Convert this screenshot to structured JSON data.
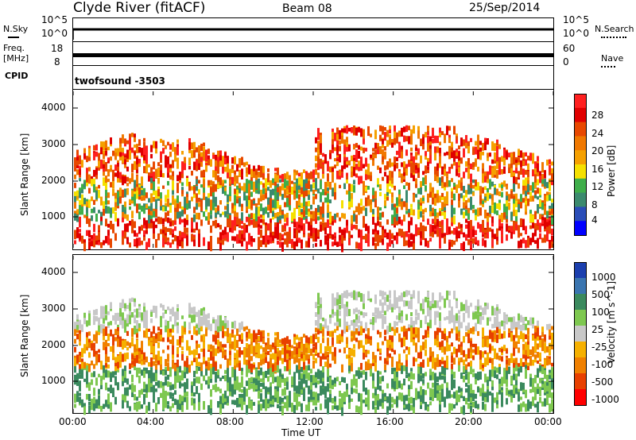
{
  "header": {
    "station": "Clyde River (fitACF)",
    "beam": "Beam 08",
    "date": "25/Sep/2014"
  },
  "nsky_panel": {
    "left_label": "N.Sky",
    "left_ticks": [
      "10^5",
      "10^0"
    ],
    "right_ticks": [
      "10^5",
      "10^0"
    ],
    "right_label": "N.Search"
  },
  "freq_panel": {
    "left_label_1": "Freq.",
    "left_label_2": "[MHz]",
    "left_ticks": [
      "18",
      "8"
    ],
    "right_ticks": [
      "60",
      "0"
    ],
    "right_label": "Nave"
  },
  "cpid": {
    "label": "CPID",
    "value": "twofsound -3503"
  },
  "colorscale_power": {
    "title": "Power [dB]",
    "labels": [
      "28",
      "24",
      "20",
      "16",
      "12",
      "8",
      "4"
    ],
    "colors": [
      "#0000ff",
      "#2a4db8",
      "#3b8a6e",
      "#3fae4a",
      "#f5e000",
      "#f5a000",
      "#f07800",
      "#e84800",
      "#e00000",
      "#ff2020"
    ]
  },
  "colorscale_velocity": {
    "title": "Velocity [m s^-1]",
    "labels": [
      "1000",
      "500",
      "100",
      "25",
      "-25",
      "-100",
      "-500",
      "-1000"
    ],
    "colors": [
      "#1b3fae",
      "#3a75b0",
      "#3b8a5e",
      "#7ec850",
      "#c8c8c8",
      "#f5b000",
      "#f08000",
      "#e84000",
      "#ff0000"
    ]
  },
  "chart_data": [
    {
      "type": "heatmap",
      "title": "Power",
      "ylabel": "Slant Range [km]",
      "xlabel": "Time UT",
      "ylim": [
        180,
        4500
      ],
      "yticks": [
        "4000",
        "3000",
        "2000",
        "1000"
      ],
      "xticks": [
        "00:00",
        "04:00",
        "08:00",
        "12:00",
        "16:00",
        "20:00",
        "00:00"
      ],
      "colorbar_label": "Power [dB]"
    },
    {
      "type": "heatmap",
      "title": "Velocity",
      "ylabel": "Slant Range [km]",
      "xlabel": "Time UT",
      "ylim": [
        180,
        4500
      ],
      "yticks": [
        "4000",
        "3000",
        "2000",
        "1000"
      ],
      "xticks": [
        "00:00",
        "04:00",
        "08:00",
        "12:00",
        "16:00",
        "20:00",
        "00:00"
      ],
      "colorbar_label": "Velocity [m s^-1]"
    }
  ],
  "x_axis": {
    "title": "Time UT"
  }
}
